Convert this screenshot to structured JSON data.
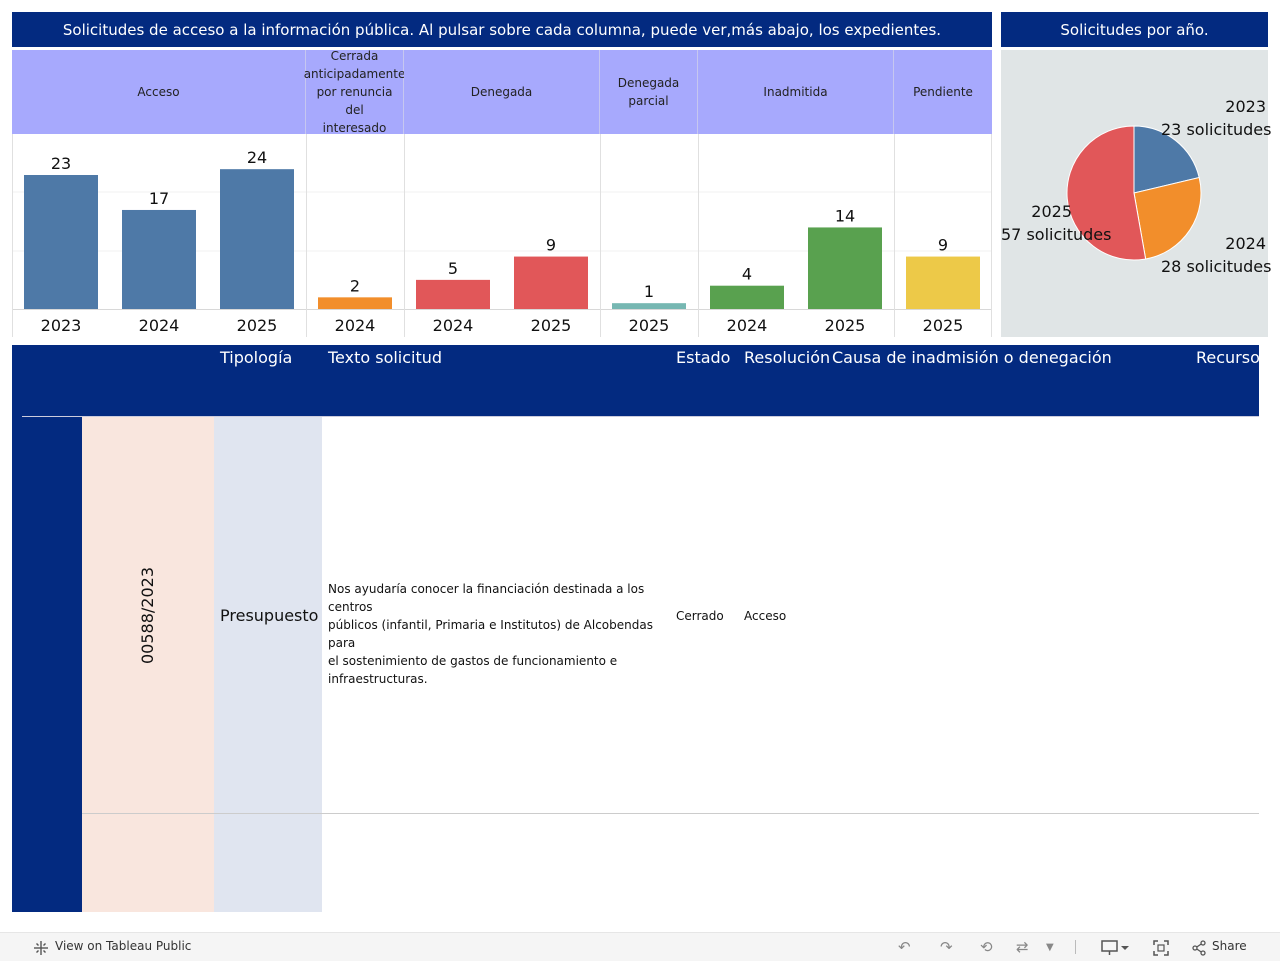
{
  "header": {
    "main_title": "Solicitudes de acceso a la información pública. Al pulsar sobre cada columna, puede ver,más abajo, los expedientes.",
    "pie_title": "Solicitudes por año."
  },
  "colors": {
    "title_bg": "#032a80",
    "category_header_bg": "#a7a9fd",
    "acceso": "#4e79a7",
    "cerrada": "#f28e2b",
    "denegada": "#e15759",
    "denegada_parcial": "#76b7b2",
    "inadmitida": "#59a14f",
    "pendiente": "#edc948"
  },
  "chart_data": [
    {
      "type": "bar",
      "categories": [
        "Acceso",
        "Cerrada anticipadamente por renuncia del interesado",
        "Denegada",
        "Denegada parcial",
        "Inadmitida",
        "Pendiente"
      ],
      "category_lines": {
        "cerrada": [
          "Cerrada",
          "anticipadamente",
          "por renuncia del",
          "interesado"
        ],
        "denegada_parcial": [
          "Denegada",
          "parcial"
        ]
      },
      "groups": [
        {
          "category": "Acceso",
          "color": "#4e79a7",
          "bars": [
            {
              "x": "2023",
              "value": 23
            },
            {
              "x": "2024",
              "value": 17
            },
            {
              "x": "2025",
              "value": 24
            }
          ]
        },
        {
          "category": "Cerrada anticipadamente por renuncia del interesado",
          "color": "#f28e2b",
          "bars": [
            {
              "x": "2024",
              "value": 2
            }
          ]
        },
        {
          "category": "Denegada",
          "color": "#e15759",
          "bars": [
            {
              "x": "2024",
              "value": 5
            },
            {
              "x": "2025",
              "value": 9
            }
          ]
        },
        {
          "category": "Denegada parcial",
          "color": "#76b7b2",
          "bars": [
            {
              "x": "2025",
              "value": 1
            }
          ]
        },
        {
          "category": "Inadmitida",
          "color": "#59a14f",
          "bars": [
            {
              "x": "2024",
              "value": 4
            },
            {
              "x": "2025",
              "value": 14
            }
          ]
        },
        {
          "category": "Pendiente",
          "color": "#edc948",
          "bars": [
            {
              "x": "2025",
              "value": 9
            }
          ]
        }
      ],
      "ylim": [
        0,
        30
      ],
      "grid": true
    },
    {
      "type": "pie",
      "title": "Solicitudes por año.",
      "slices": [
        {
          "label": "2023",
          "value_label": "23 solicitudes",
          "value": 23,
          "color": "#4e79a7"
        },
        {
          "label": "2024",
          "value_label": "28 solicitudes",
          "value": 28,
          "color": "#f28e2b"
        },
        {
          "label": "2025",
          "value_label": "57 solicitudes",
          "value": 57,
          "color": "#e15759"
        }
      ]
    }
  ],
  "table": {
    "columns": [
      "Tipología",
      "Texto solicitud",
      "Estado",
      "Resolución",
      "Causa de inadmisión o denegación",
      "Recurso"
    ],
    "rows": [
      {
        "expediente": "00588/2023",
        "tipologia": "Presupuesto",
        "texto_lines": [
          "Nos ayudaría conocer la financiación destinada a los centros",
          "públicos (infantil, Primaria e Institutos) de Alcobendas para",
          "el sostenimiento de gastos de funcionamiento e",
          "infraestructuras."
        ],
        "estado": "Cerrado",
        "resolucion": "Acceso",
        "causa": "",
        "recurso": ""
      }
    ]
  },
  "footer": {
    "view_label": "View on Tableau Public",
    "share_label": "Share",
    "icons": [
      "tableau-logo-icon",
      "undo-icon",
      "redo-icon",
      "revert-icon",
      "refresh-icon",
      "pause-dropdown-icon",
      "download-icon",
      "fullscreen-icon",
      "share-icon"
    ]
  }
}
